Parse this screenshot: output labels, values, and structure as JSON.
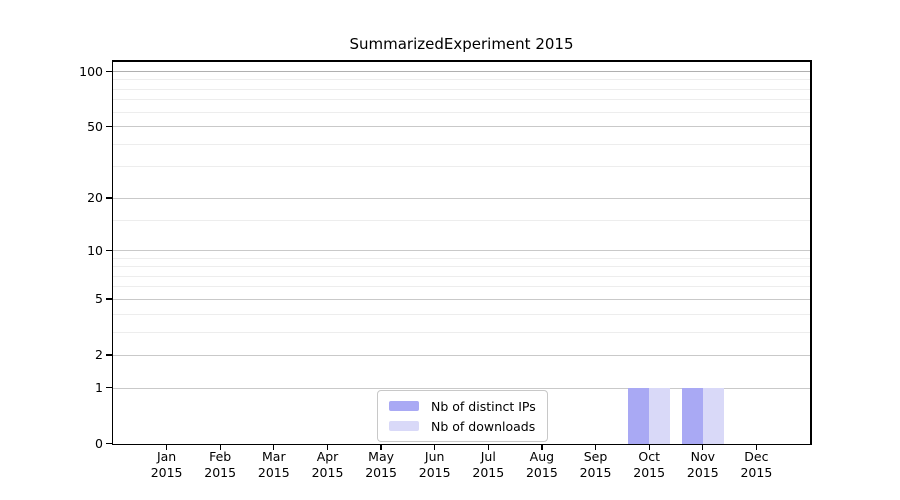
{
  "chart_data": {
    "type": "bar",
    "title": "SummarizedExperiment 2015",
    "categories": [
      "Jan",
      "Feb",
      "Mar",
      "Apr",
      "May",
      "Jun",
      "Jul",
      "Aug",
      "Sep",
      "Oct",
      "Nov",
      "Dec"
    ],
    "category_year": "2015",
    "series": [
      {
        "name": "Nb of distinct IPs",
        "color": "#a9a9f4",
        "values": [
          0,
          0,
          0,
          0,
          0,
          0,
          0,
          0,
          0,
          1,
          1,
          0
        ]
      },
      {
        "name": "Nb of downloads",
        "color": "#d9d9f8",
        "values": [
          0,
          0,
          0,
          0,
          0,
          0,
          0,
          0,
          0,
          1,
          1,
          0
        ]
      }
    ],
    "y_major_ticks": [
      0,
      1,
      2,
      5,
      10,
      20,
      50,
      100
    ],
    "y_minor_gridlines": [
      3,
      4,
      6,
      7,
      8,
      9,
      15,
      30,
      40,
      60,
      70,
      80,
      90
    ],
    "y_scale": "log10(value+1)",
    "ylim": [
      0,
      113
    ],
    "xlabel": "",
    "ylabel": "",
    "grid": true,
    "legend_position": "bottom-center"
  },
  "colors": {
    "background": "#ffffff",
    "axis": "#000000",
    "grid_minor": "#ededed",
    "grid_major": "#c9c9c9",
    "grid_top": "#b0b0b0",
    "legend_border": "#c8c8c8",
    "series_distinct_ips": "#a9a9f4",
    "series_downloads": "#d9d9f8"
  }
}
